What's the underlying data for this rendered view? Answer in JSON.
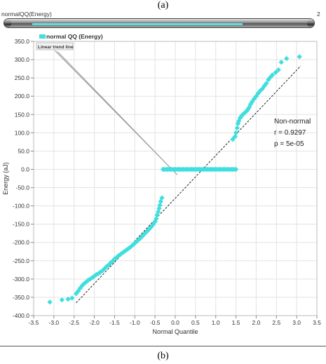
{
  "captions": {
    "top": "(a)",
    "bottom": "(b)"
  },
  "window": {
    "title": "normalQQ(Energy)",
    "right_label": "2"
  },
  "colors": {
    "series": "#40dede",
    "trend": "#222222",
    "grid": "#e3e3e3",
    "frame": "#bbbbbb"
  },
  "chart_data": {
    "type": "scatter",
    "title": "",
    "xlabel": "Normal Quantile",
    "ylabel": "Energy (aJ)",
    "xlim": [
      -3.5,
      3.5
    ],
    "ylim": [
      -400,
      350
    ],
    "xticks": [
      "-3.5",
      "-3.0",
      "-2.5",
      "-2.0",
      "-1.5",
      "-1.0",
      "-0.5",
      "0.0",
      "0.5",
      "1.0",
      "1.5",
      "2.0",
      "2.5",
      "3.0",
      "3.5"
    ],
    "yticks": [
      "350.0",
      "300.0",
      "250.0",
      "200.0",
      "150.0",
      "100.0",
      "50.0",
      "0.0",
      "-50.0",
      "-100.0",
      "-150.0",
      "-200.0",
      "-250.0",
      "-300.0",
      "-350.0",
      "-400.0"
    ],
    "grid": true,
    "legend": {
      "position": "top-left",
      "series_label": "normal QQ (Energy)",
      "trend_label": "Linear trend line"
    },
    "annotation": {
      "line1": "Non-normal",
      "line2": "r = 0.9297",
      "line3": "p = 5e-05"
    },
    "trend_line": {
      "x": [
        -2.45,
        3.1
      ],
      "y": [
        -365,
        283
      ]
    },
    "series": [
      {
        "name": "normal QQ (Energy)",
        "points": [
          [
            -3.1,
            -363
          ],
          [
            -2.8,
            -357
          ],
          [
            -2.65,
            -355
          ],
          [
            -2.55,
            -352
          ],
          [
            -2.45,
            -340
          ],
          [
            -2.4,
            -333
          ],
          [
            -2.35,
            -325
          ],
          [
            -2.3,
            -318
          ],
          [
            -2.25,
            -312
          ],
          [
            -2.2,
            -308
          ],
          [
            -2.15,
            -303
          ],
          [
            -2.1,
            -300
          ],
          [
            -2.05,
            -296
          ],
          [
            -2.0,
            -292
          ],
          [
            -1.95,
            -288
          ],
          [
            -1.9,
            -285
          ],
          [
            -1.85,
            -281
          ],
          [
            -1.8,
            -277
          ],
          [
            -1.75,
            -272
          ],
          [
            -1.7,
            -266
          ],
          [
            -1.65,
            -262
          ],
          [
            -1.6,
            -256
          ],
          [
            -1.55,
            -251
          ],
          [
            -1.5,
            -245
          ],
          [
            -1.45,
            -241
          ],
          [
            -1.4,
            -236
          ],
          [
            -1.35,
            -232
          ],
          [
            -1.3,
            -228
          ],
          [
            -1.25,
            -224
          ],
          [
            -1.2,
            -220
          ],
          [
            -1.15,
            -216
          ],
          [
            -1.1,
            -212
          ],
          [
            -1.05,
            -207
          ],
          [
            -1.0,
            -202
          ],
          [
            -0.95,
            -197
          ],
          [
            -0.9,
            -192
          ],
          [
            -0.85,
            -187
          ],
          [
            -0.8,
            -181
          ],
          [
            -0.75,
            -175
          ],
          [
            -0.7,
            -170
          ],
          [
            -0.65,
            -164
          ],
          [
            -0.6,
            -158
          ],
          [
            -0.55,
            -151
          ],
          [
            -0.5,
            -143
          ],
          [
            -0.47,
            -135
          ],
          [
            -0.45,
            -125
          ],
          [
            -0.42,
            -116
          ],
          [
            -0.4,
            -107
          ],
          [
            -0.38,
            -98
          ],
          [
            -0.36,
            -88
          ],
          [
            -0.33,
            -78
          ],
          [
            -0.3,
            0
          ],
          [
            -0.2,
            0
          ],
          [
            -0.1,
            0
          ],
          [
            0.0,
            0
          ],
          [
            0.1,
            0
          ],
          [
            0.2,
            0
          ],
          [
            0.3,
            0
          ],
          [
            0.4,
            0
          ],
          [
            0.5,
            0
          ],
          [
            0.6,
            0
          ],
          [
            0.7,
            0
          ],
          [
            0.8,
            0
          ],
          [
            0.9,
            0
          ],
          [
            1.0,
            0
          ],
          [
            1.1,
            0
          ],
          [
            1.2,
            0
          ],
          [
            1.3,
            0
          ],
          [
            1.4,
            0
          ],
          [
            1.5,
            0
          ],
          [
            1.42,
            82
          ],
          [
            1.48,
            90
          ],
          [
            1.5,
            100
          ],
          [
            1.53,
            113
          ],
          [
            1.55,
            125
          ],
          [
            1.57,
            132
          ],
          [
            1.6,
            140
          ],
          [
            1.63,
            145
          ],
          [
            1.67,
            150
          ],
          [
            1.72,
            155
          ],
          [
            1.77,
            160
          ],
          [
            1.8,
            165
          ],
          [
            1.83,
            170
          ],
          [
            1.86,
            178
          ],
          [
            1.9,
            185
          ],
          [
            1.95,
            193
          ],
          [
            2.0,
            200
          ],
          [
            2.05,
            208
          ],
          [
            2.1,
            215
          ],
          [
            2.15,
            220
          ],
          [
            2.2,
            228
          ],
          [
            2.25,
            235
          ],
          [
            2.3,
            245
          ],
          [
            2.35,
            252
          ],
          [
            2.4,
            258
          ],
          [
            2.48,
            265
          ],
          [
            2.55,
            272
          ],
          [
            2.62,
            293
          ],
          [
            2.75,
            303
          ],
          [
            3.07,
            308
          ]
        ]
      }
    ]
  }
}
